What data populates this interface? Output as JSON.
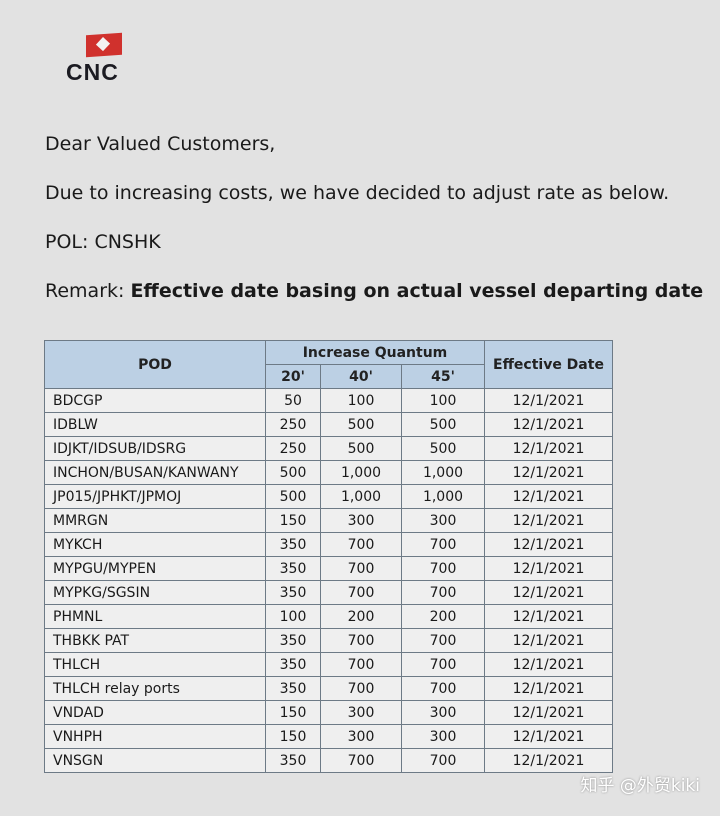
{
  "logo": {
    "text": "CNC",
    "flag_color": "#d0312d"
  },
  "greeting": "Dear Valued Customers,",
  "intro": "Due to increasing costs, we have decided to adjust rate as below.",
  "pol": "POL: CNSHK",
  "remark_label": "Remark:",
  "remark_text": "Effective date basing on actual vessel departing date",
  "table": {
    "headers": {
      "pod": "POD",
      "group": "Increase Quantum",
      "c20": "20'",
      "c40": "40'",
      "c45": "45'",
      "date": "Effective Date"
    },
    "rows": [
      [
        "BDCGP",
        "50",
        "100",
        "100",
        "12/1/2021"
      ],
      [
        "IDBLW",
        "250",
        "500",
        "500",
        "12/1/2021"
      ],
      [
        "IDJKT/IDSUB/IDSRG",
        "250",
        "500",
        "500",
        "12/1/2021"
      ],
      [
        "INCHON/BUSAN/KANWANY",
        "500",
        "1,000",
        "1,000",
        "12/1/2021"
      ],
      [
        "JP015/JPHKT/JPMOJ",
        "500",
        "1,000",
        "1,000",
        "12/1/2021"
      ],
      [
        "MMRGN",
        "150",
        "300",
        "300",
        "12/1/2021"
      ],
      [
        "MYKCH",
        "350",
        "700",
        "700",
        "12/1/2021"
      ],
      [
        "MYPGU/MYPEN",
        "350",
        "700",
        "700",
        "12/1/2021"
      ],
      [
        "MYPKG/SGSIN",
        "350",
        "700",
        "700",
        "12/1/2021"
      ],
      [
        "PHMNL",
        "100",
        "200",
        "200",
        "12/1/2021"
      ],
      [
        "THBKK PAT",
        "350",
        "700",
        "700",
        "12/1/2021"
      ],
      [
        "THLCH",
        "350",
        "700",
        "700",
        "12/1/2021"
      ],
      [
        "THLCH relay ports",
        "350",
        "700",
        "700",
        "12/1/2021"
      ],
      [
        "VNDAD",
        "150",
        "300",
        "300",
        "12/1/2021"
      ],
      [
        "VNHPH",
        "150",
        "300",
        "300",
        "12/1/2021"
      ],
      [
        "VNSGN",
        "350",
        "700",
        "700",
        "12/1/2021"
      ]
    ]
  },
  "watermark": "知乎 @外贸kiki"
}
